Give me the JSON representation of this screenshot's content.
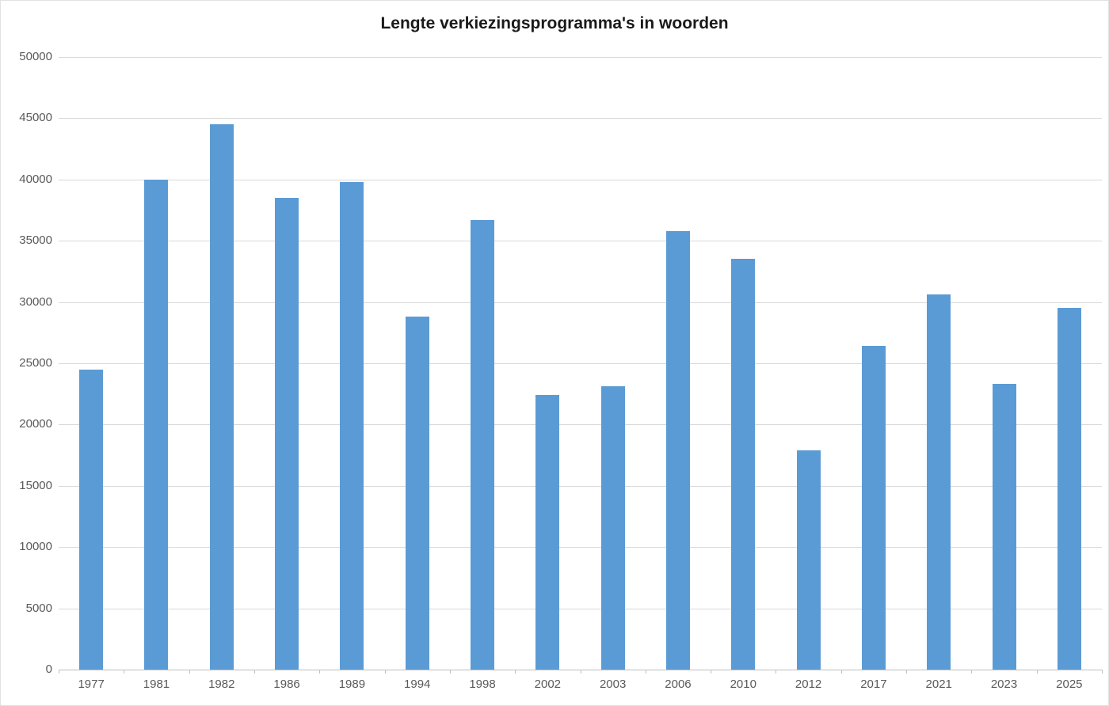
{
  "chart_data": {
    "type": "bar",
    "title": "Lengte verkiezingsprogramma's in woorden",
    "categories": [
      "1977",
      "1981",
      "1982",
      "1986",
      "1989",
      "1994",
      "1998",
      "2002",
      "2003",
      "2006",
      "2010",
      "2012",
      "2017",
      "2021",
      "2023",
      "2025"
    ],
    "values": [
      24500,
      40000,
      44500,
      38500,
      39800,
      28800,
      36700,
      22400,
      23100,
      35800,
      33500,
      17900,
      26400,
      30600,
      23300,
      29500
    ],
    "xlabel": "",
    "ylabel": "",
    "ylim": [
      0,
      50000
    ],
    "ytick_step": 5000,
    "ytick_labels": [
      "0",
      "5000",
      "10000",
      "15000",
      "20000",
      "25000",
      "30000",
      "35000",
      "40000",
      "45000",
      "50000"
    ],
    "grid": true,
    "legend": false,
    "colors": {
      "bar": "#5b9bd5",
      "gridline": "#d9d9d9",
      "axis_line": "#bfbfbf",
      "tick_label": "#595959",
      "title": "#1a1a1a",
      "background": "#ffffff"
    }
  }
}
